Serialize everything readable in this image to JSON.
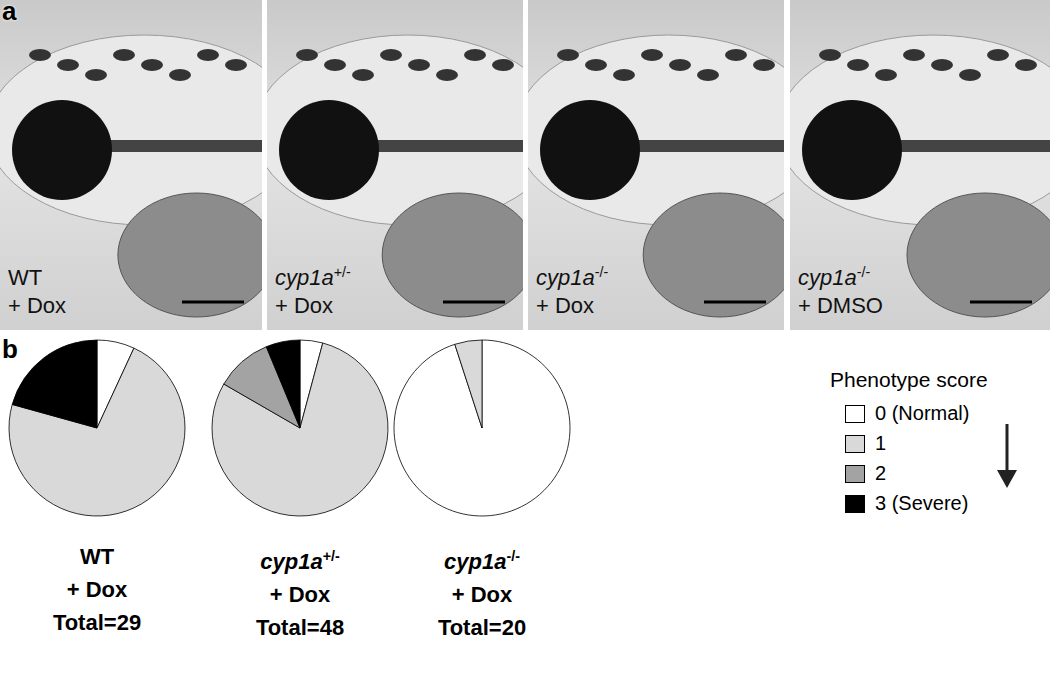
{
  "panel_labels": [
    "a",
    "b"
  ],
  "images": [
    {
      "genotype": "WT",
      "treatment": "+ Dox"
    },
    {
      "genotype": "cyp1a",
      "superscript": "+/-",
      "treatment": "+ Dox"
    },
    {
      "genotype": "cyp1a",
      "superscript": "-/-",
      "treatment": "+ Dox"
    },
    {
      "genotype": "cyp1a",
      "superscript": "-/-",
      "treatment": "+ DMSO"
    }
  ],
  "legend_title": "Phenotype score",
  "chart_data": [
    {
      "type": "pie",
      "genotype": "WT",
      "treatment": "+ Dox",
      "total": {
        "value": 29,
        "label": "Total=29"
      },
      "categories": [
        "0 (Normal)",
        "1",
        "2",
        "3 (Severe)"
      ],
      "values": [
        2,
        21,
        0,
        6
      ],
      "colors": [
        "#ffffff",
        "#d9d9d9",
        "#a3a3a3",
        "#000000"
      ]
    },
    {
      "type": "pie",
      "genotype": "cyp1a",
      "superscript": "+/-",
      "treatment": "+ Dox",
      "total": {
        "value": 48,
        "label": "Total=48"
      },
      "categories": [
        "0 (Normal)",
        "1",
        "2",
        "3 (Severe)"
      ],
      "values": [
        2,
        38,
        5,
        3
      ],
      "colors": [
        "#ffffff",
        "#d9d9d9",
        "#a3a3a3",
        "#000000"
      ]
    },
    {
      "type": "pie",
      "genotype": "cyp1a",
      "superscript": "-/-",
      "treatment": "+ Dox",
      "total": {
        "value": 20,
        "label": "Total=20"
      },
      "categories": [
        "0 (Normal)",
        "1",
        "2",
        "3 (Severe)"
      ],
      "values": [
        19,
        1,
        0,
        0
      ],
      "colors": [
        "#ffffff",
        "#d9d9d9",
        "#a3a3a3",
        "#000000"
      ]
    }
  ]
}
